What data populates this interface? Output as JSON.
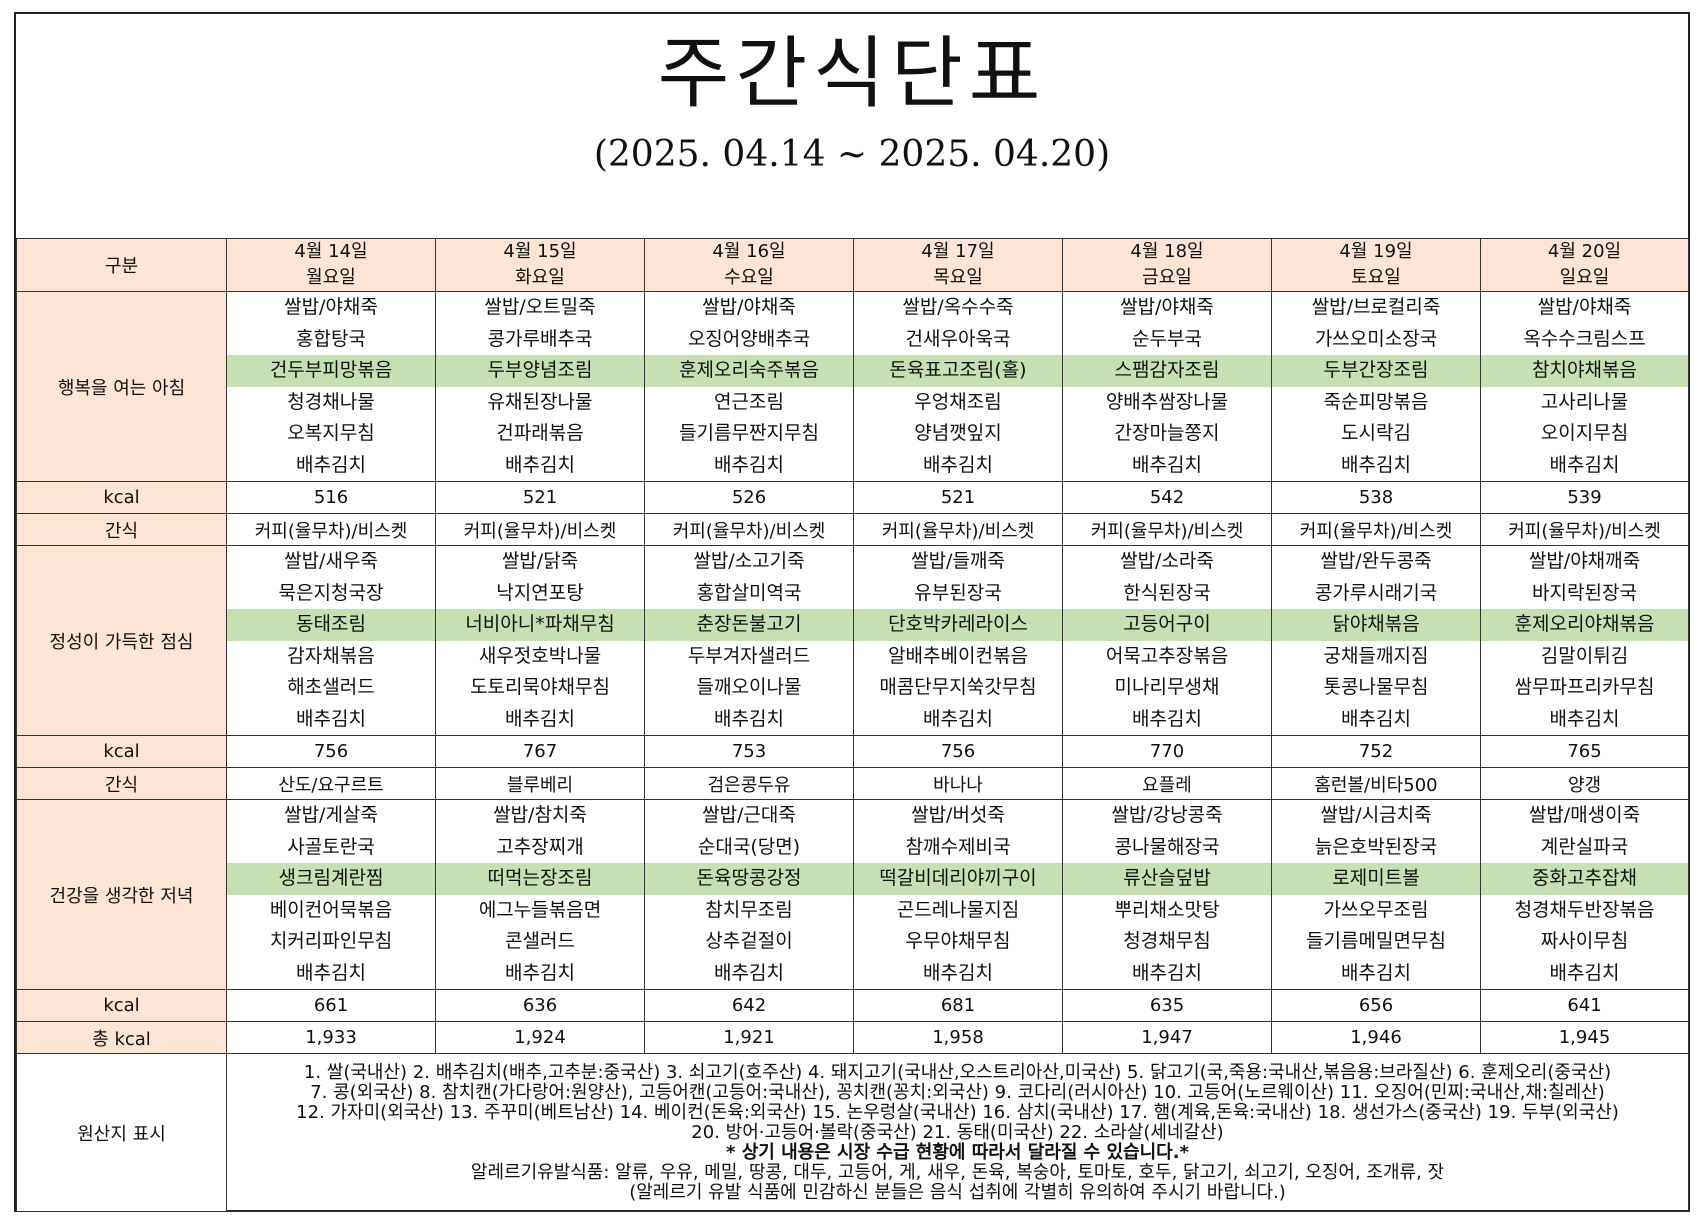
{
  "header": {
    "title": "주간식단표",
    "date_range": "(2025. 04.14 ~ 2025. 04.20)"
  },
  "labels": {
    "category": "구분",
    "breakfast": "행복을 여는 아침",
    "lunch": "정성이 가득한 점심",
    "dinner": "건강을 생각한 저녁",
    "kcal": "kcal",
    "snack": "간식",
    "total_kcal": "총 kcal",
    "origin": "원산지 표시"
  },
  "days": [
    {
      "date": "4월 14일",
      "weekday": "월요일"
    },
    {
      "date": "4월 15일",
      "weekday": "화요일"
    },
    {
      "date": "4월 16일",
      "weekday": "수요일"
    },
    {
      "date": "4월 17일",
      "weekday": "목요일"
    },
    {
      "date": "4월 18일",
      "weekday": "금요일"
    },
    {
      "date": "4월 19일",
      "weekday": "토요일"
    },
    {
      "date": "4월 20일",
      "weekday": "일요일"
    }
  ],
  "highlight_color": "#c6e0b4",
  "header_color": "#fce4d6",
  "breakfast": [
    [
      "쌀밥/야채죽",
      "홍합탕국",
      "건두부피망볶음",
      "청경채나물",
      "오복지무침",
      "배추김치"
    ],
    [
      "쌀밥/오트밀죽",
      "콩가루배추국",
      "두부양념조림",
      "유채된장나물",
      "건파래볶음",
      "배추김치"
    ],
    [
      "쌀밥/야채죽",
      "오징어양배추국",
      "훈제오리숙주볶음",
      "연근조림",
      "들기름무짠지무침",
      "배추김치"
    ],
    [
      "쌀밥/옥수수죽",
      "건새우아욱국",
      "돈육표고조림(홀)",
      "우엉채조림",
      "양념깻잎지",
      "배추김치"
    ],
    [
      "쌀밥/야채죽",
      "순두부국",
      "스팸감자조림",
      "양배추쌈장나물",
      "간장마늘쫑지",
      "배추김치"
    ],
    [
      "쌀밥/브로컬리죽",
      "가쓰오미소장국",
      "두부간장조림",
      "죽순피망볶음",
      "도시락김",
      "배추김치"
    ],
    [
      "쌀밥/야채죽",
      "옥수수크림스프",
      "참치야채볶음",
      "고사리나물",
      "오이지무침",
      "배추김치"
    ]
  ],
  "breakfast_kcal": [
    "516",
    "521",
    "526",
    "521",
    "542",
    "538",
    "539"
  ],
  "snack_am": [
    "커피(율무차)/비스켓",
    "커피(율무차)/비스켓",
    "커피(율무차)/비스켓",
    "커피(율무차)/비스켓",
    "커피(율무차)/비스켓",
    "커피(율무차)/비스켓",
    "커피(율무차)/비스켓"
  ],
  "lunch": [
    [
      "쌀밥/새우죽",
      "묵은지청국장",
      "동태조림",
      "감자채볶음",
      "해초샐러드",
      "배추김치"
    ],
    [
      "쌀밥/닭죽",
      "낙지연포탕",
      "너비아니*파채무침",
      "새우젓호박나물",
      "도토리묵야채무침",
      "배추김치"
    ],
    [
      "쌀밥/소고기죽",
      "홍합살미역국",
      "춘장돈불고기",
      "두부겨자샐러드",
      "들깨오이나물",
      "배추김치"
    ],
    [
      "쌀밥/들깨죽",
      "유부된장국",
      "단호박카레라이스",
      "알배추베이컨볶음",
      "매콤단무지쑥갓무침",
      "배추김치"
    ],
    [
      "쌀밥/소라죽",
      "한식된장국",
      "고등어구이",
      "어묵고추장볶음",
      "미나리무생채",
      "배추김치"
    ],
    [
      "쌀밥/완두콩죽",
      "콩가루시래기국",
      "닭야채볶음",
      "궁채들깨지짐",
      "톳콩나물무침",
      "배추김치"
    ],
    [
      "쌀밥/야채깨죽",
      "바지락된장국",
      "훈제오리야채볶음",
      "김말이튀김",
      "쌈무파프리카무침",
      "배추김치"
    ]
  ],
  "lunch_kcal": [
    "756",
    "767",
    "753",
    "756",
    "770",
    "752",
    "765"
  ],
  "snack_pm": [
    "산도/요구르트",
    "블루베리",
    "검은콩두유",
    "바나나",
    "요플레",
    "홈런볼/비타500",
    "양갱"
  ],
  "dinner": [
    [
      "쌀밥/게살죽",
      "사골토란국",
      "생크림계란찜",
      "베이컨어묵볶음",
      "치커리파인무침",
      "배추김치"
    ],
    [
      "쌀밥/참치죽",
      "고추장찌개",
      "떠먹는장조림",
      "에그누들볶음면",
      "콘샐러드",
      "배추김치"
    ],
    [
      "쌀밥/근대죽",
      "순대국(당면)",
      "돈육땅콩강정",
      "참치무조림",
      "상추겉절이",
      "배추김치"
    ],
    [
      "쌀밥/버섯죽",
      "참깨수제비국",
      "떡갈비데리야끼구이",
      "곤드레나물지짐",
      "우무야채무침",
      "배추김치"
    ],
    [
      "쌀밥/강낭콩죽",
      "콩나물해장국",
      "류산슬덮밥",
      "뿌리채소맛탕",
      "청경채무침",
      "배추김치"
    ],
    [
      "쌀밥/시금치죽",
      "늙은호박된장국",
      "로제미트볼",
      "가쓰오무조림",
      "들기름메밀면무침",
      "배추김치"
    ],
    [
      "쌀밥/매생이죽",
      "계란실파국",
      "중화고추잡채",
      "청경채두반장볶음",
      "짜사이무침",
      "배추김치"
    ]
  ],
  "dinner_kcal": [
    "661",
    "636",
    "642",
    "681",
    "635",
    "656",
    "641"
  ],
  "total_kcal": [
    "1,933",
    "1,924",
    "1,921",
    "1,958",
    "1,947",
    "1,946",
    "1,945"
  ],
  "origin_lines": [
    "1. 쌀(국내산) 2. 배추김치(배추,고추분:중국산) 3. 쇠고기(호주산) 4. 돼지고기(국내산,오스트리아산,미국산) 5. 닭고기(국,죽용:국내산,볶음용:브라질산) 6. 훈제오리(중국산)",
    "7. 콩(외국산) 8. 참치캔(가다랑어:원양산), 고등어캔(고등어:국내산), 꽁치캔(꽁치:외국산) 9. 코다리(러시아산) 10. 고등어(노르웨이산) 11. 오징어(민찌:국내산,채:칠레산)",
    "12. 가자미(외국산) 13. 주꾸미(베트남산) 14. 베이컨(돈육:외국산) 15. 논우렁살(국내산) 16. 삼치(국내산) 17. 햄(계육,돈육:국내산) 18. 생선가스(중국산) 19. 두부(외국산)",
    "20. 방어·고등어·볼락(중국산) 21.  동태(미국산) 22. 소라살(세네갈산)"
  ],
  "origin_notice": "* 상기 내용은 시장 수급 현황에 따라서 달라질 수 있습니다.*",
  "allergy_line": "알레르기유발식품: 알류, 우유, 메밀, 땅콩, 대두, 고등어, 게, 새우, 돈육, 복숭아, 토마토, 호두, 닭고기, 쇠고기, 오징어, 조개류, 잣",
  "allergy_note": "(알레르기 유발 식품에 민감하신 분들은 음식 섭취에 각별히 유의하여 주시기 바랍니다.)"
}
